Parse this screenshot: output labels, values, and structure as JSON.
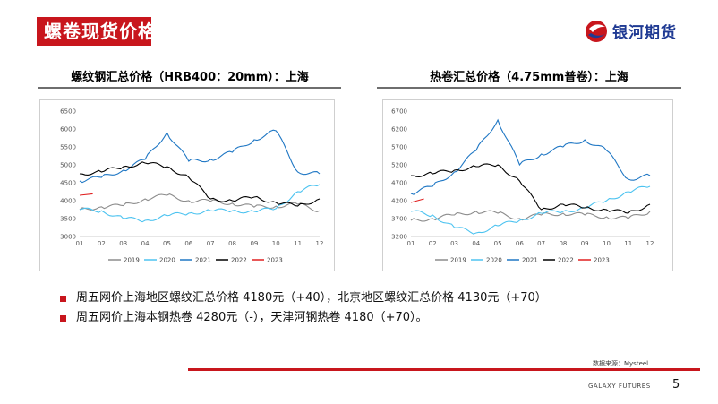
{
  "header": {
    "title": "螺卷现货价格",
    "brand": "银河期货"
  },
  "charts": [
    {
      "header": "螺纹钢汇总价格（HRB400：20mm）：上海",
      "chart_data": {
        "type": "line",
        "x_ticks": [
          "01",
          "02",
          "03",
          "04",
          "05",
          "06",
          "07",
          "08",
          "09",
          "10",
          "11",
          "12"
        ],
        "ylim": [
          3000,
          6500
        ],
        "y_ticks": [
          3000,
          3500,
          4000,
          4500,
          5000,
          5500,
          6000,
          6500
        ],
        "series": [
          {
            "name": "2019",
            "color": "#8c8c8c",
            "values": [
              3750,
              3830,
              3860,
              4050,
              4150,
              4000,
              3980,
              3930,
              3820,
              3850,
              3900,
              3720
            ]
          },
          {
            "name": "2020",
            "color": "#4dc3f0",
            "values": [
              3750,
              3720,
              3500,
              3450,
              3580,
              3650,
              3720,
              3720,
              3700,
              3780,
              4250,
              4450
            ]
          },
          {
            "name": "2021",
            "color": "#1f77c4",
            "values": [
              4550,
              4650,
              4850,
              5150,
              5900,
              5100,
              5150,
              5350,
              5700,
              5950,
              4800,
              4750
            ]
          },
          {
            "name": "2022",
            "color": "#000000",
            "values": [
              4750,
              4800,
              4950,
              5050,
              4950,
              4650,
              4050,
              4000,
              4100,
              3950,
              3850,
              4050
            ]
          },
          {
            "name": "2023",
            "color": "#e02020",
            "values": [
              4150,
              4190
            ]
          }
        ]
      }
    },
    {
      "header": "热卷汇总价格（4.75mm普卷）：上海",
      "chart_data": {
        "type": "line",
        "x_ticks": [
          "01",
          "02",
          "03",
          "04",
          "05",
          "06",
          "07",
          "08",
          "09",
          "10",
          "11",
          "12"
        ],
        "ylim": [
          3200,
          6700
        ],
        "y_ticks": [
          3200,
          3700,
          4200,
          4700,
          5200,
          5700,
          6200,
          6700
        ],
        "series": [
          {
            "name": "2019",
            "color": "#8c8c8c",
            "values": [
              3650,
              3700,
              3800,
              3900,
              3850,
              3700,
              3800,
              3850,
              3800,
              3750,
              3700,
              3900
            ]
          },
          {
            "name": "2020",
            "color": "#4dc3f0",
            "values": [
              3900,
              3800,
              3450,
              3300,
              3500,
              3650,
              3850,
              3900,
              4000,
              4200,
              4450,
              4600
            ]
          },
          {
            "name": "2021",
            "color": "#1f77c4",
            "values": [
              4400,
              4600,
              5000,
              5600,
              6450,
              5200,
              5500,
              5700,
              5900,
              5600,
              4800,
              4900
            ]
          },
          {
            "name": "2022",
            "color": "#000000",
            "values": [
              4900,
              4950,
              5050,
              5150,
              5200,
              4750,
              3950,
              4100,
              4000,
              3950,
              3850,
              4100
            ]
          },
          {
            "name": "2023",
            "color": "#e02020",
            "values": [
              4150,
              4250
            ]
          }
        ]
      }
    }
  ],
  "bullets": [
    "周五网价上海地区螺纹汇总价格 4180元（+40），北京地区螺纹汇总价格 4130元（+70）",
    "周五网价上海本钢热卷 4280元（-），天津河钢热卷 4180（+70）。"
  ],
  "source": "数据来源：Mysteel",
  "footer_brand": "GALAXY FUTURES",
  "page_number": "5"
}
